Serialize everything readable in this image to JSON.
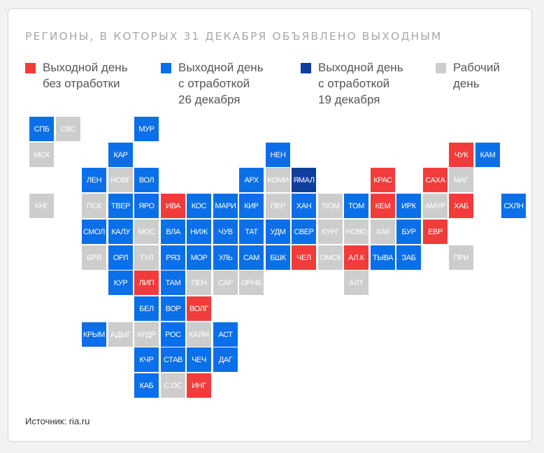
{
  "title": "РЕГИОНЫ, В КОТОРЫХ 31 ДЕКАБРЯ ОБЪЯВЛЕНО ВЫХОДНЫМ",
  "colors": {
    "red": "#f23b3b",
    "blue": "#0a6fe8",
    "dark": "#0e3e9e",
    "gray": "#cdcdcd",
    "background": "#ffffff"
  },
  "legend": [
    {
      "key": "red",
      "label": "Выходной день\nбез отработки"
    },
    {
      "key": "blue",
      "label": "Выходной день\nс отработкой\n26 декабря"
    },
    {
      "key": "dark",
      "label": "Выходной день\nс отработкой\n19 декабря"
    },
    {
      "key": "gray",
      "label": "Рабочий\nдень"
    }
  ],
  "source": "Источник: ria.ru",
  "regions": [
    {
      "label": "СПБ",
      "status": "blue",
      "col": 0,
      "row": 0
    },
    {
      "label": "СВС",
      "status": "gray",
      "col": 1,
      "row": 0
    },
    {
      "label": "МУР",
      "status": "blue",
      "col": 4,
      "row": 0
    },
    {
      "label": "МСК",
      "status": "gray",
      "col": 0,
      "row": 1
    },
    {
      "label": "КАР",
      "status": "blue",
      "col": 3,
      "row": 1
    },
    {
      "label": "НЕН",
      "status": "blue",
      "col": 9,
      "row": 1
    },
    {
      "label": "ЧУК",
      "status": "red",
      "col": 16,
      "row": 1
    },
    {
      "label": "КАМ",
      "status": "blue",
      "col": 17,
      "row": 1
    },
    {
      "label": "ЛЕН",
      "status": "blue",
      "col": 2,
      "row": 2
    },
    {
      "label": "НОВГ",
      "status": "gray",
      "col": 3,
      "row": 2
    },
    {
      "label": "ВОЛ",
      "status": "blue",
      "col": 4,
      "row": 2
    },
    {
      "label": "АРХ",
      "status": "blue",
      "col": 8,
      "row": 2
    },
    {
      "label": "КОМИ",
      "status": "gray",
      "col": 9,
      "row": 2
    },
    {
      "label": "ЯМАЛ",
      "status": "dark",
      "col": 10,
      "row": 2
    },
    {
      "label": "КРАС",
      "status": "red",
      "col": 13,
      "row": 2
    },
    {
      "label": "САХА",
      "status": "red",
      "col": 15,
      "row": 2
    },
    {
      "label": "МАГ",
      "status": "gray",
      "col": 16,
      "row": 2
    },
    {
      "label": "КНГ",
      "status": "gray",
      "col": 0,
      "row": 3
    },
    {
      "label": "ПСК",
      "status": "gray",
      "col": 2,
      "row": 3
    },
    {
      "label": "ТВЕР",
      "status": "blue",
      "col": 3,
      "row": 3
    },
    {
      "label": "ЯРО",
      "status": "blue",
      "col": 4,
      "row": 3
    },
    {
      "label": "ИВА",
      "status": "red",
      "col": 5,
      "row": 3
    },
    {
      "label": "КОС",
      "status": "blue",
      "col": 6,
      "row": 3
    },
    {
      "label": "МАРИ",
      "status": "blue",
      "col": 7,
      "row": 3
    },
    {
      "label": "КИР",
      "status": "blue",
      "col": 8,
      "row": 3
    },
    {
      "label": "ПЕР",
      "status": "gray",
      "col": 9,
      "row": 3
    },
    {
      "label": "ХАН",
      "status": "blue",
      "col": 10,
      "row": 3
    },
    {
      "label": "ТЮМ",
      "status": "gray",
      "col": 11,
      "row": 3
    },
    {
      "label": "ТОМ",
      "status": "blue",
      "col": 12,
      "row": 3
    },
    {
      "label": "КЕМ",
      "status": "red",
      "col": 13,
      "row": 3
    },
    {
      "label": "ИРК",
      "status": "blue",
      "col": 14,
      "row": 3
    },
    {
      "label": "АМУР",
      "status": "gray",
      "col": 15,
      "row": 3
    },
    {
      "label": "ХАБ",
      "status": "red",
      "col": 16,
      "row": 3
    },
    {
      "label": "СХЛН",
      "status": "blue",
      "col": 18,
      "row": 3
    },
    {
      "label": "СМОЛ",
      "status": "blue",
      "col": 2,
      "row": 4
    },
    {
      "label": "КАЛУ",
      "status": "blue",
      "col": 3,
      "row": 4
    },
    {
      "label": "МОС",
      "status": "gray",
      "col": 4,
      "row": 4
    },
    {
      "label": "ВЛА",
      "status": "blue",
      "col": 5,
      "row": 4
    },
    {
      "label": "НИЖ",
      "status": "blue",
      "col": 6,
      "row": 4
    },
    {
      "label": "ЧУВ",
      "status": "blue",
      "col": 7,
      "row": 4
    },
    {
      "label": "ТАТ",
      "status": "blue",
      "col": 8,
      "row": 4
    },
    {
      "label": "УДМ",
      "status": "blue",
      "col": 9,
      "row": 4
    },
    {
      "label": "СВЕР",
      "status": "blue",
      "col": 10,
      "row": 4
    },
    {
      "label": "КУРГ",
      "status": "gray",
      "col": 11,
      "row": 4
    },
    {
      "label": "НОВО",
      "status": "gray",
      "col": 12,
      "row": 4
    },
    {
      "label": "ХАК",
      "status": "gray",
      "col": 13,
      "row": 4
    },
    {
      "label": "БУР",
      "status": "blue",
      "col": 14,
      "row": 4
    },
    {
      "label": "ЕВР",
      "status": "red",
      "col": 15,
      "row": 4
    },
    {
      "label": "БРЯ",
      "status": "gray",
      "col": 2,
      "row": 5
    },
    {
      "label": "ОРЛ",
      "status": "blue",
      "col": 3,
      "row": 5
    },
    {
      "label": "ТУЛ",
      "status": "gray",
      "col": 4,
      "row": 5
    },
    {
      "label": "РЯЗ",
      "status": "blue",
      "col": 5,
      "row": 5
    },
    {
      "label": "МОР",
      "status": "blue",
      "col": 6,
      "row": 5
    },
    {
      "label": "УЛЬ",
      "status": "blue",
      "col": 7,
      "row": 5
    },
    {
      "label": "САМ",
      "status": "blue",
      "col": 8,
      "row": 5
    },
    {
      "label": "БШК",
      "status": "blue",
      "col": 9,
      "row": 5
    },
    {
      "label": "ЧЕЛ",
      "status": "red",
      "col": 10,
      "row": 5
    },
    {
      "label": "ОМСК",
      "status": "gray",
      "col": 11,
      "row": 5
    },
    {
      "label": "АЛ.К",
      "status": "red",
      "col": 12,
      "row": 5
    },
    {
      "label": "ТЫВА",
      "status": "blue",
      "col": 13,
      "row": 5
    },
    {
      "label": "ЗАБ",
      "status": "blue",
      "col": 14,
      "row": 5
    },
    {
      "label": "ПРИ",
      "status": "gray",
      "col": 16,
      "row": 5
    },
    {
      "label": "КУР",
      "status": "blue",
      "col": 3,
      "row": 6
    },
    {
      "label": "ЛИП",
      "status": "red",
      "col": 4,
      "row": 6
    },
    {
      "label": "ТАМ",
      "status": "blue",
      "col": 5,
      "row": 6
    },
    {
      "label": "ПЕН",
      "status": "gray",
      "col": 6,
      "row": 6
    },
    {
      "label": "САР",
      "status": "gray",
      "col": 7,
      "row": 6
    },
    {
      "label": "ОРНБ",
      "status": "gray",
      "col": 8,
      "row": 6
    },
    {
      "label": "АЛТ",
      "status": "gray",
      "col": 12,
      "row": 6
    },
    {
      "label": "БЕЛ",
      "status": "blue",
      "col": 4,
      "row": 7
    },
    {
      "label": "ВОР",
      "status": "blue",
      "col": 5,
      "row": 7
    },
    {
      "label": "ВОЛГ",
      "status": "red",
      "col": 6,
      "row": 7
    },
    {
      "label": "КРЫМ",
      "status": "blue",
      "col": 2,
      "row": 8
    },
    {
      "label": "АДЫГ",
      "status": "gray",
      "col": 3,
      "row": 8
    },
    {
      "label": "КРДР",
      "status": "gray",
      "col": 4,
      "row": 8
    },
    {
      "label": "РОС",
      "status": "blue",
      "col": 5,
      "row": 8
    },
    {
      "label": "КАЛМ",
      "status": "gray",
      "col": 6,
      "row": 8
    },
    {
      "label": "АСТ",
      "status": "blue",
      "col": 7,
      "row": 8
    },
    {
      "label": "КЧР",
      "status": "blue",
      "col": 4,
      "row": 9
    },
    {
      "label": "СТАВ",
      "status": "blue",
      "col": 5,
      "row": 9
    },
    {
      "label": "ЧЕЧ",
      "status": "blue",
      "col": 6,
      "row": 9
    },
    {
      "label": "ДАГ",
      "status": "blue",
      "col": 7,
      "row": 9
    },
    {
      "label": "КАБ",
      "status": "blue",
      "col": 4,
      "row": 10
    },
    {
      "label": "С.ОС",
      "status": "gray",
      "col": 5,
      "row": 10
    },
    {
      "label": "ИНГ",
      "status": "red",
      "col": 6,
      "row": 10
    }
  ]
}
